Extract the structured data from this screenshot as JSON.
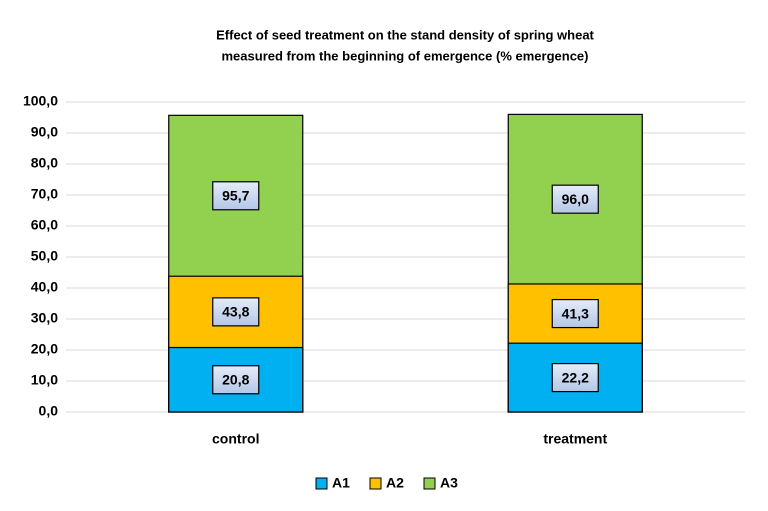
{
  "chart_data": {
    "type": "overlap-bar",
    "title": [
      "Effect of seed treatment on the stand density of spring wheat",
      "measured from the beginning of emergence (% emergence)"
    ],
    "categories": [
      "control",
      "treatment"
    ],
    "series": [
      {
        "name": "A1",
        "color": "#00b0f0",
        "values": [
          20.8,
          22.2
        ],
        "value_labels": [
          "20,8",
          "22,2"
        ]
      },
      {
        "name": "A2",
        "color": "#ffc000",
        "values": [
          43.8,
          41.3
        ],
        "value_labels": [
          "43,8",
          "41,3"
        ]
      },
      {
        "name": "A3",
        "color": "#92d050",
        "values": [
          95.7,
          96.0
        ],
        "value_labels": [
          "95,7",
          "96,0"
        ]
      }
    ],
    "ylim": [
      0,
      100
    ],
    "yticks": [
      {
        "value": 0,
        "label": "0,0"
      },
      {
        "value": 10,
        "label": "10,0"
      },
      {
        "value": 20,
        "label": "20,0"
      },
      {
        "value": 30,
        "label": "30,0"
      },
      {
        "value": 40,
        "label": "40,0"
      },
      {
        "value": 50,
        "label": "50,0"
      },
      {
        "value": 60,
        "label": "60,0"
      },
      {
        "value": 70,
        "label": "70,0"
      },
      {
        "value": 80,
        "label": "80,0"
      },
      {
        "value": 90,
        "label": "90,0"
      },
      {
        "value": 100,
        "label": "100,0"
      }
    ],
    "grid": true,
    "legend": "bottom"
  }
}
